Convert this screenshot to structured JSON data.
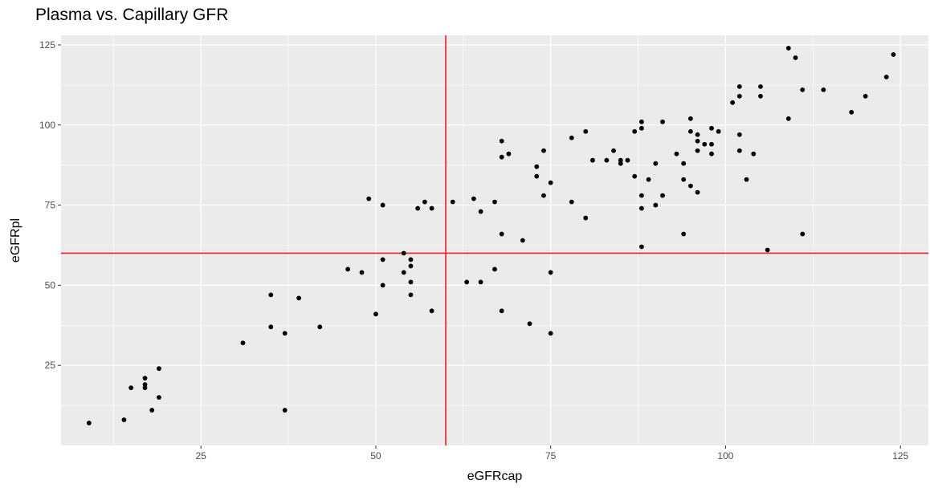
{
  "chart_data": {
    "type": "scatter",
    "title": "Plasma vs. Capillary GFR",
    "xlabel": "eGFRcap",
    "ylabel": "eGFRpl",
    "xlim": [
      5,
      129
    ],
    "ylim": [
      0,
      128
    ],
    "x_ticks": [
      25,
      50,
      75,
      100,
      125
    ],
    "y_ticks": [
      25,
      50,
      75,
      100,
      125
    ],
    "grid": true,
    "background": "#ebebeb",
    "grid_color": "#ffffff",
    "point_color": "#000000",
    "reference_lines": {
      "color": "#ee2020",
      "vertical_x": 60,
      "horizontal_y": 60
    },
    "points": [
      [
        9,
        7
      ],
      [
        14,
        8
      ],
      [
        15,
        18
      ],
      [
        17,
        21
      ],
      [
        17,
        19
      ],
      [
        17,
        18
      ],
      [
        18,
        11
      ],
      [
        19,
        24
      ],
      [
        19,
        15
      ],
      [
        31,
        32
      ],
      [
        35,
        47
      ],
      [
        35,
        37
      ],
      [
        37,
        35
      ],
      [
        37,
        11
      ],
      [
        39,
        46
      ],
      [
        42,
        37
      ],
      [
        46,
        55
      ],
      [
        48,
        54
      ],
      [
        49,
        77
      ],
      [
        50,
        41
      ],
      [
        51,
        75
      ],
      [
        51,
        58
      ],
      [
        51,
        50
      ],
      [
        54,
        60
      ],
      [
        54,
        54
      ],
      [
        55,
        58
      ],
      [
        55,
        56
      ],
      [
        55,
        51
      ],
      [
        55,
        47
      ],
      [
        56,
        74
      ],
      [
        57,
        76
      ],
      [
        58,
        74
      ],
      [
        58,
        42
      ],
      [
        61,
        76
      ],
      [
        63,
        51
      ],
      [
        64,
        77
      ],
      [
        65,
        73
      ],
      [
        65,
        51
      ],
      [
        67,
        76
      ],
      [
        67,
        55
      ],
      [
        68,
        95
      ],
      [
        68,
        90
      ],
      [
        68,
        66
      ],
      [
        68,
        42
      ],
      [
        69,
        91
      ],
      [
        71,
        64
      ],
      [
        72,
        38
      ],
      [
        73,
        87
      ],
      [
        73,
        84
      ],
      [
        74,
        92
      ],
      [
        74,
        78
      ],
      [
        75,
        82
      ],
      [
        75,
        54
      ],
      [
        75,
        35
      ],
      [
        78,
        96
      ],
      [
        78,
        76
      ],
      [
        80,
        98
      ],
      [
        80,
        71
      ],
      [
        81,
        89
      ],
      [
        83,
        89
      ],
      [
        84,
        92
      ],
      [
        85,
        89
      ],
      [
        85,
        88
      ],
      [
        86,
        89
      ],
      [
        87,
        98
      ],
      [
        87,
        84
      ],
      [
        88,
        101
      ],
      [
        88,
        99
      ],
      [
        88,
        78
      ],
      [
        88,
        74
      ],
      [
        88,
        62
      ],
      [
        89,
        83
      ],
      [
        90,
        88
      ],
      [
        90,
        75
      ],
      [
        91,
        101
      ],
      [
        91,
        78
      ],
      [
        93,
        91
      ],
      [
        94,
        88
      ],
      [
        94,
        83
      ],
      [
        94,
        66
      ],
      [
        95,
        102
      ],
      [
        95,
        98
      ],
      [
        95,
        81
      ],
      [
        96,
        97
      ],
      [
        96,
        95
      ],
      [
        96,
        92
      ],
      [
        96,
        79
      ],
      [
        97,
        94
      ],
      [
        98,
        99
      ],
      [
        98,
        94
      ],
      [
        98,
        91
      ],
      [
        99,
        98
      ],
      [
        101,
        107
      ],
      [
        102,
        112
      ],
      [
        102,
        109
      ],
      [
        102,
        97
      ],
      [
        102,
        92
      ],
      [
        103,
        83
      ],
      [
        104,
        91
      ],
      [
        105,
        112
      ],
      [
        105,
        109
      ],
      [
        106,
        61
      ],
      [
        109,
        124
      ],
      [
        109,
        102
      ],
      [
        110,
        121
      ],
      [
        111,
        111
      ],
      [
        111,
        66
      ],
      [
        114,
        111
      ],
      [
        118,
        104
      ],
      [
        120,
        109
      ],
      [
        123,
        115
      ],
      [
        124,
        122
      ]
    ]
  }
}
